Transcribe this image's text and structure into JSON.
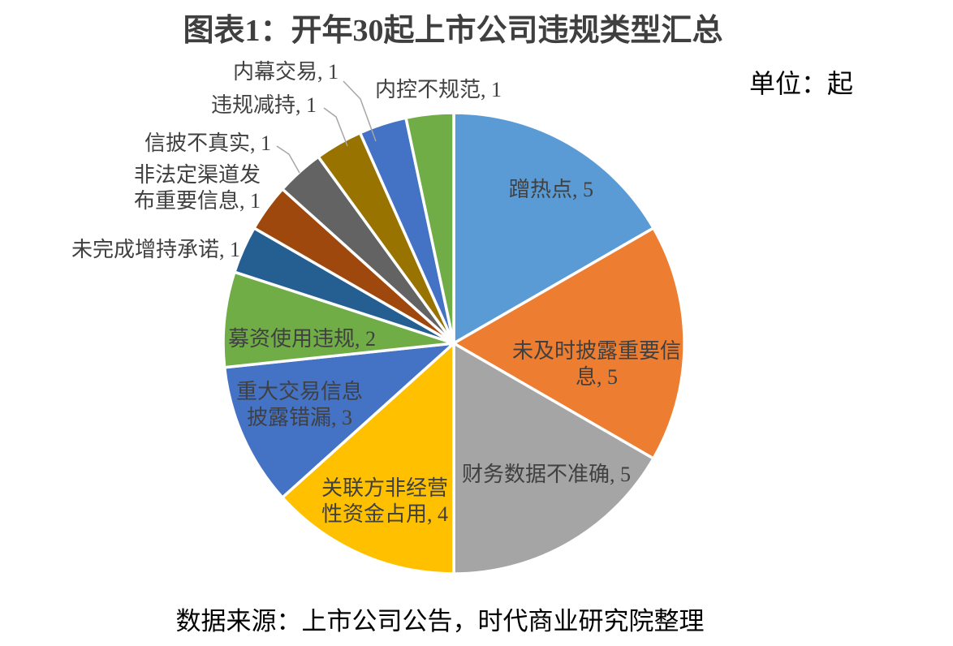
{
  "title": "图表1：开年30起上市公司违规类型汇总",
  "unit_label": "单位：起",
  "source": "数据来源：上市公司公告，时代商业研究院整理",
  "chart_data": {
    "type": "pie",
    "title": "图表1：开年30起上市公司违规类型汇总",
    "unit": "起",
    "total": 30,
    "start_angle_deg": 0,
    "direction": "clockwise",
    "legend": "none",
    "slices": [
      {
        "label": "蹭热点",
        "value": 5,
        "color": "#5B9BD5",
        "label_lines": [
          "蹭热点, 5"
        ]
      },
      {
        "label": "未及时披露重要信息",
        "value": 5,
        "color": "#ED7D31",
        "label_lines": [
          "未及时披露重要信",
          "息, 5"
        ]
      },
      {
        "label": "财务数据不准确",
        "value": 5,
        "color": "#A5A5A5",
        "label_lines": [
          "财务数据不准确, 5"
        ]
      },
      {
        "label": "关联方非经营性资金占用",
        "value": 4,
        "color": "#FFC000",
        "label_lines": [
          "关联方非经营",
          "性资金占用, 4"
        ]
      },
      {
        "label": "重大交易信息披露错漏",
        "value": 3,
        "color": "#4472C4",
        "label_lines": [
          "重大交易信息",
          "披露错漏, 3"
        ]
      },
      {
        "label": "募资使用违规",
        "value": 2,
        "color": "#70AD47",
        "label_lines": [
          "募资使用违规, 2"
        ]
      },
      {
        "label": "未完成增持承诺",
        "value": 1,
        "color": "#255E91",
        "label_lines": [
          "未完成增持承诺, 1"
        ]
      },
      {
        "label": "非法定渠道发布重要信息",
        "value": 1,
        "color": "#9E480E",
        "label_lines": [
          "非法定渠道发",
          "布重要信息, 1"
        ]
      },
      {
        "label": "信披不真实",
        "value": 1,
        "color": "#636363",
        "label_lines": [
          "信披不真实, 1"
        ]
      },
      {
        "label": "违规减持",
        "value": 1,
        "color": "#997300",
        "label_lines": [
          "违规减持, 1"
        ]
      },
      {
        "label": "内幕交易",
        "value": 1,
        "color": "#4472C4",
        "label_lines": [
          "内幕交易, 1"
        ]
      },
      {
        "label": "内控不规范",
        "value": 1,
        "color": "#70AD47",
        "label_lines": [
          "内控不规范, 1"
        ]
      }
    ]
  }
}
